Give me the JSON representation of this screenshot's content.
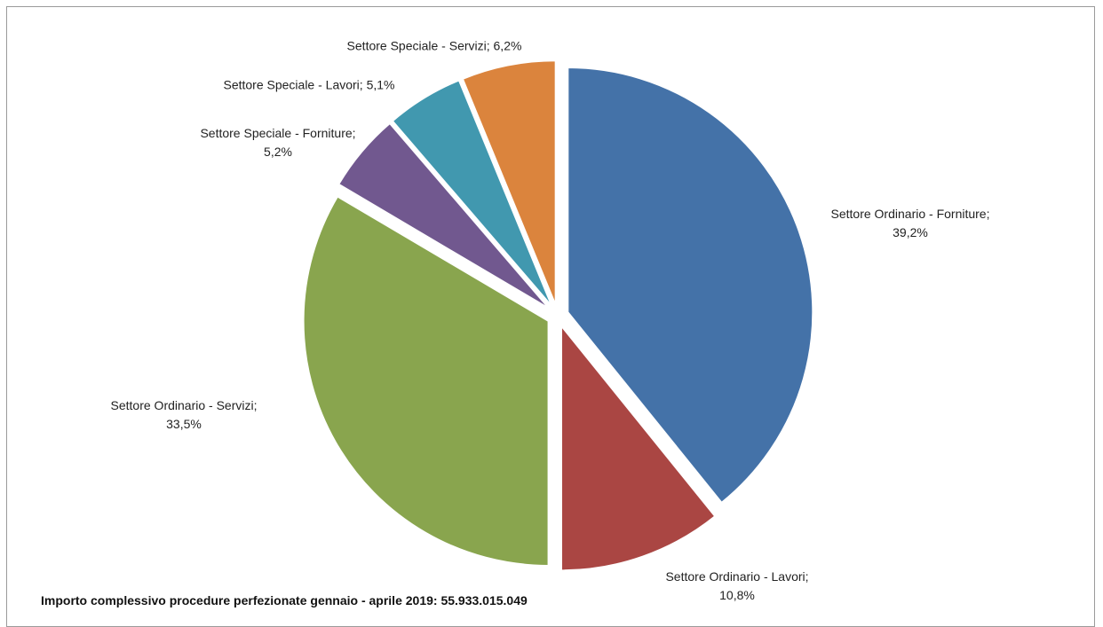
{
  "chart_data": {
    "type": "pie",
    "title": "",
    "colors": [
      "#4472a8",
      "#aa4643",
      "#89a54e",
      "#71588f",
      "#4198af",
      "#db843d"
    ],
    "slices": [
      {
        "name": "Settore Ordinario - Forniture;",
        "value": 39.2,
        "label": "39,2%"
      },
      {
        "name": "Settore Ordinario - Lavori;",
        "value": 10.8,
        "label": "10,8%"
      },
      {
        "name": "Settore Ordinario - Servizi;",
        "value": 33.5,
        "label": "33,5%"
      },
      {
        "name": "Settore Speciale - Forniture;",
        "value": 5.2,
        "label": "5,2%"
      },
      {
        "name": "Settore Speciale - Lavori;",
        "value": 5.1,
        "label": "5,1%"
      },
      {
        "name": "Settore Speciale - Servizi;",
        "value": 6.2,
        "label": "6,2%"
      }
    ]
  },
  "footer": {
    "note": "Importo  complessivo procedure perfezionate gennaio - aprile 2019:  55.933.015.049"
  }
}
